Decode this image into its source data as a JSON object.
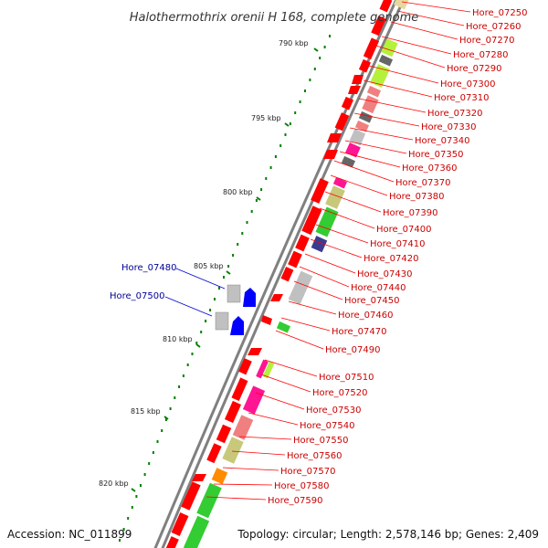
{
  "title": "Halothermothrix orenii H 168, complete genome",
  "accession": "Accession: NC_011899",
  "summary": "Topology: circular; Length: 2,578,146 bp; Genes: 2,409",
  "colors": {
    "backbone": "#808080",
    "forward_gene": "#ff0000",
    "reverse_gene": "#0000ff",
    "forward_label": "#cc0000",
    "reverse_label": "#000099",
    "tick": "#008000",
    "cog_lime": "#b5f03c",
    "cog_green": "#33cc33",
    "cog_magenta": "#ff1493",
    "cog_pink": "#f08080",
    "cog_khaki": "#c8c87a",
    "cog_gray": "#b0b0b0",
    "cog_darkgray": "#666666",
    "cog_navy": "#3b3b8f",
    "cog_orange": "#ff8c00"
  },
  "kbp_labels": [
    "790 kbp",
    "795 kbp",
    "800 kbp",
    "805 kbp",
    "810 kbp",
    "815 kbp",
    "820 kbp"
  ],
  "forward_genes": [
    "Hore_07250",
    "Hore_07260",
    "Hore_07270",
    "Hore_07280",
    "Hore_07290",
    "Hore_07300",
    "Hore_07310",
    "Hore_07320",
    "Hore_07330",
    "Hore_07340",
    "Hore_07350",
    "Hore_07360",
    "Hore_07370",
    "Hore_07380",
    "Hore_07390",
    "Hore_07400",
    "Hore_07410",
    "Hore_07420",
    "Hore_07430",
    "Hore_07440",
    "Hore_07450",
    "Hore_07460",
    "Hore_07470",
    "Hore_07490",
    "Hore_07510",
    "Hore_07520",
    "Hore_07530",
    "Hore_07540",
    "Hore_07550",
    "Hore_07560",
    "Hore_07570",
    "Hore_07580",
    "Hore_07590"
  ],
  "reverse_genes": [
    "Hore_07480",
    "Hore_07500"
  ]
}
